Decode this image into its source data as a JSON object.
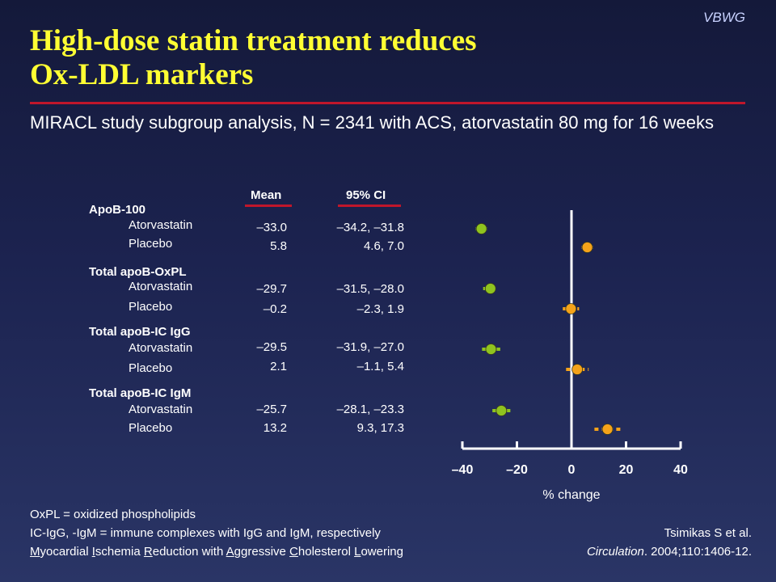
{
  "brand": "VBWG",
  "title_line1": "High-dose statin treatment reduces",
  "title_line2": "Ox-LDL markers",
  "subtitle": "MIRACL study subgroup analysis, N = 2341 with ACS, atorvastatin 80 mg for 16 weeks",
  "colors": {
    "title": "#ffff33",
    "rule": "#c0162b",
    "atorvastatin": "#8fc31f",
    "placebo": "#f5a31a",
    "axis": "#ffffff"
  },
  "table_headers": {
    "mean": "Mean",
    "ci": "95% CI"
  },
  "groups": [
    {
      "label": "ApoB-100",
      "rows": [
        {
          "label": "Atorvastatin",
          "mean": "–33.0",
          "ci": "–34.2, –31.8"
        },
        {
          "label": "Placebo",
          "mean": "5.8",
          "ci": "4.6, 7.0"
        }
      ]
    },
    {
      "label": "Total apoB-OxPL",
      "rows": [
        {
          "label": "Atorvastatin",
          "mean": "–29.7",
          "ci": "–31.5, –28.0"
        },
        {
          "label": "Placebo",
          "mean": "–0.2",
          "ci": "–2.3, 1.9"
        }
      ]
    },
    {
      "label": "Total apoB-IC IgG",
      "rows": [
        {
          "label": "Atorvastatin",
          "mean": "–29.5",
          "ci": "–31.9, –27.0"
        },
        {
          "label": "Placebo",
          "mean": "2.1",
          "ci": "–1.1, 5.4"
        }
      ]
    },
    {
      "label": "Total apoB-IC IgM",
      "rows": [
        {
          "label": "Atorvastatin",
          "mean": "–25.7",
          "ci": "–28.1, –23.3"
        },
        {
          "label": "Placebo",
          "mean": "13.2",
          "ci": "9.3, 17.3"
        }
      ]
    }
  ],
  "chart_data": {
    "type": "scatter",
    "subtype": "forest-plot",
    "xlabel": "% change",
    "xlim": [
      -40,
      40
    ],
    "xticks": [
      -40,
      -20,
      0,
      20,
      40
    ],
    "xtick_labels": [
      "–40",
      "–20",
      "0",
      "20",
      "40"
    ],
    "reference_line_x": 0,
    "series": [
      {
        "name": "Atorvastatin",
        "color": "#8fc31f"
      },
      {
        "name": "Placebo",
        "color": "#f5a31a"
      }
    ],
    "points": [
      {
        "group": "ApoB-100",
        "arm": "Atorvastatin",
        "mean": -33.0,
        "ci_low": -34.2,
        "ci_high": -31.8
      },
      {
        "group": "ApoB-100",
        "arm": "Placebo",
        "mean": 5.8,
        "ci_low": 4.6,
        "ci_high": 7.0
      },
      {
        "group": "Total apoB-OxPL",
        "arm": "Atorvastatin",
        "mean": -29.7,
        "ci_low": -31.5,
        "ci_high": -28.0
      },
      {
        "group": "Total apoB-OxPL",
        "arm": "Placebo",
        "mean": -0.2,
        "ci_low": -2.3,
        "ci_high": 1.9
      },
      {
        "group": "Total apoB-IC IgG",
        "arm": "Atorvastatin",
        "mean": -29.5,
        "ci_low": -31.9,
        "ci_high": -27.0
      },
      {
        "group": "Total apoB-IC IgG",
        "arm": "Placebo",
        "mean": 2.1,
        "ci_low": -1.1,
        "ci_high": 5.4
      },
      {
        "group": "Total apoB-IC IgM",
        "arm": "Atorvastatin",
        "mean": -25.7,
        "ci_low": -28.1,
        "ci_high": -23.3
      },
      {
        "group": "Total apoB-IC IgM",
        "arm": "Placebo",
        "mean": 13.2,
        "ci_low": 9.3,
        "ci_high": 17.3
      }
    ]
  },
  "footnotes": {
    "oxpl": "OxPL = oxidized phospholipids",
    "ic": "IC-IgG, -IgM = immune complexes with IgG and IgM, respectively",
    "miracl": [
      {
        "u": "M",
        "t": "yocardial "
      },
      {
        "u": "I",
        "t": "schemia "
      },
      {
        "u": "R",
        "t": "eduction with "
      },
      {
        "u": "A",
        "t": "ggressive "
      },
      {
        "u": "C",
        "t": "holesterol "
      },
      {
        "u": "L",
        "t": "owering"
      }
    ]
  },
  "citation": {
    "authors": "Tsimikas S et al.",
    "journal": "Circulation",
    "rest": ". 2004;110:1406-12."
  }
}
